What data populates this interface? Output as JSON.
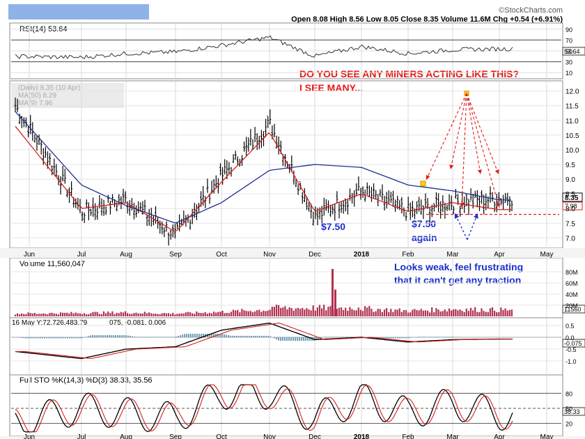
{
  "header": {
    "brand": "©StockCharts.com",
    "ohlc": "Open 8.08  High 8.56  Low 8.05  Close 8.35  Volume 11.6M  Chg +0.54 (+6.91%)",
    "tab_color": "#8fb3e8"
  },
  "rsi_panel": {
    "label": "RSI(14) 53.64",
    "ticks": [
      "90",
      "70",
      "50",
      "30",
      "10"
    ],
    "last_value": "53.64",
    "levels": [
      90,
      70,
      50,
      30,
      10
    ]
  },
  "price_panel": {
    "legend": [
      "(Daily) 8.35 (10 Apr)",
      "MA(50) 8.29",
      "MA(9) 7.96"
    ],
    "ticks": [
      "12.0",
      "11.5",
      "11.0",
      "10.5",
      "10.0",
      "9.5",
      "9.0",
      "8.5",
      "8.0",
      "7.5",
      "7.0"
    ],
    "last_price": "8.35",
    "ma_badge": "7.98",
    "annotation_title": "DO YOU SEE ANY MINERS ACTING LIKE THIS?",
    "annotation_sub": "I SEE MANY...",
    "label_750": "$7.50",
    "label_750_again_1": "$7.50",
    "label_750_again_2": "again",
    "support_level": 7.8
  },
  "volume_panel": {
    "label": "Volume 11,560,047",
    "ticks": [
      "80M",
      "60M",
      "40M",
      "20M"
    ],
    "last_value": "11560",
    "comment_1": "Looks weak, feel frustrating",
    "comment_2": "that it can't get any traction"
  },
  "macd_panel": {
    "label": "16 May Y:72.726,483.79",
    "label_values": "075, -0.081, 0.006",
    "ticks": [
      "0.5",
      "0.0",
      "-0.5",
      "-1.0"
    ],
    "last_value": "-0.075"
  },
  "sto_panel": {
    "label": "Full STO %K(14,3) %D(3) 38.33, 35.56",
    "ticks": [
      "80",
      "50",
      "20"
    ],
    "last_value": "38.33"
  },
  "x_axis": {
    "months": [
      "Jun",
      "Jul",
      "Aug",
      "Sep",
      "Oct",
      "Nov",
      "Dec",
      "2018",
      "Feb",
      "Mar",
      "Apr",
      "May"
    ]
  },
  "colors": {
    "price_bar": "#000000",
    "ma_short": "#d62020",
    "ma_long": "#1f2f8f",
    "volume": "#b0304f",
    "annotation_red": "#e81818",
    "annotation_blue": "#1a2fc8",
    "marker_yellow": "#ffd700"
  },
  "chart_data": {
    "type": "line",
    "title": "",
    "xlabel": "",
    "ylabel": "",
    "ylim": [
      6.7,
      12.3
    ],
    "x": [
      "Jun",
      "Jul",
      "Aug",
      "Sep",
      "Oct",
      "Nov",
      "Dec",
      "2018",
      "Feb",
      "Mar",
      "Apr"
    ],
    "series": [
      {
        "name": "Close",
        "values": [
          11.5,
          7.9,
          8.3,
          7.1,
          9.1,
          10.9,
          7.7,
          8.6,
          7.9,
          8.2,
          8.35
        ]
      },
      {
        "name": "MA(9)",
        "values": [
          10.8,
          8.0,
          8.2,
          7.2,
          8.9,
          10.6,
          7.9,
          8.5,
          7.9,
          8.2,
          7.96
        ]
      },
      {
        "name": "MA(50)",
        "values": [
          11.3,
          8.8,
          8.1,
          7.5,
          8.2,
          9.3,
          9.5,
          9.4,
          8.8,
          8.6,
          8.29
        ]
      }
    ],
    "volume_m": [
      5,
      6,
      7,
      5,
      8,
      12,
      85,
      14,
      10,
      13,
      11.56
    ],
    "rsi": [
      40,
      38,
      45,
      48,
      60,
      75,
      40,
      58,
      45,
      52,
      53.64
    ],
    "sto_k": [
      20,
      50,
      40,
      30,
      80,
      80,
      30,
      70,
      40,
      60,
      38.33
    ],
    "macd": [
      -0.6,
      -0.9,
      -0.5,
      -0.4,
      0.3,
      0.6,
      -0.1,
      0.0,
      -0.2,
      -0.1,
      -0.075
    ]
  }
}
